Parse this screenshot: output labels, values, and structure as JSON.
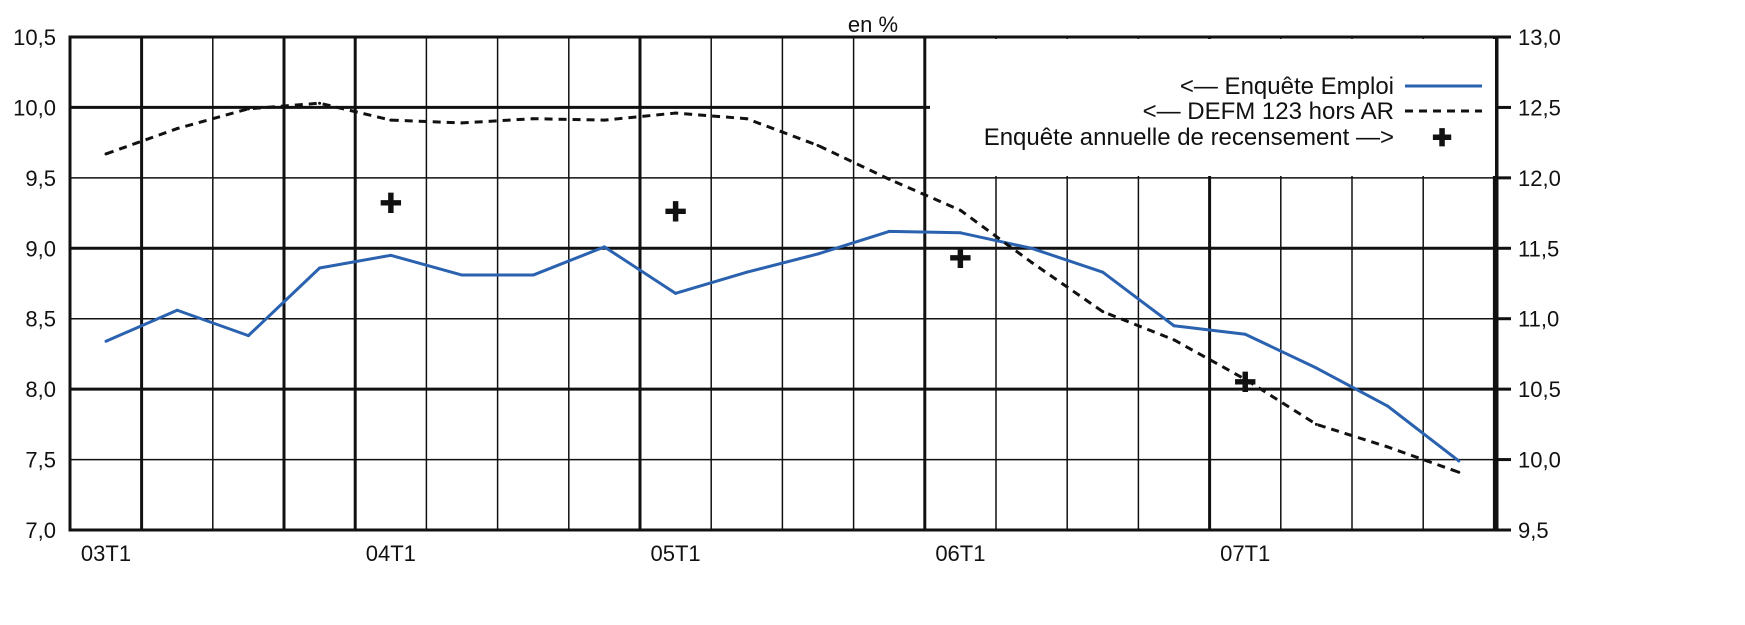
{
  "chart_data": {
    "type": "line",
    "title": "en %",
    "x": [
      "03T1",
      "03T2",
      "03T3",
      "03T4",
      "04T1",
      "04T2",
      "04T3",
      "04T4",
      "05T1",
      "05T2",
      "05T3",
      "05T4",
      "06T1",
      "06T2",
      "06T3",
      "06T4",
      "07T1",
      "07T2",
      "07T3",
      "07T4"
    ],
    "x_tick_labels": [
      "03T1",
      "04T1",
      "05T1",
      "06T1",
      "07T1"
    ],
    "y_left": {
      "ylim": [
        7.0,
        10.5
      ],
      "ticks": [
        "7,0",
        "7,5",
        "8,0",
        "8,5",
        "9,0",
        "9,5",
        "10,0",
        "10,5"
      ]
    },
    "y_right": {
      "ylim": [
        9.5,
        13.0
      ],
      "ticks": [
        "9,5",
        "10,0",
        "10,5",
        "11,0",
        "11,5",
        "12,0",
        "12,5",
        "13,0"
      ]
    },
    "series": [
      {
        "name": "<— Enquête Emploi",
        "axis": "left",
        "style": "solid",
        "color": "#2a62b0",
        "x": [
          "03T1",
          "03T2",
          "03T3",
          "03T4",
          "04T1",
          "04T2",
          "04T3",
          "04T4",
          "05T1",
          "05T2",
          "05T3",
          "05T4",
          "06T1",
          "06T2",
          "06T3",
          "06T4",
          "07T1",
          "07T2",
          "07T3",
          "07T4"
        ],
        "values": [
          8.34,
          8.56,
          8.38,
          8.86,
          8.95,
          8.81,
          8.81,
          9.01,
          8.68,
          8.83,
          8.96,
          9.12,
          9.11,
          9.0,
          8.83,
          8.45,
          8.39,
          8.15,
          7.88,
          7.49
        ]
      },
      {
        "name": "<— DEFM 123 hors AR",
        "axis": "left",
        "style": "dashed",
        "color": "#111111",
        "x": [
          "03T1",
          "03T2",
          "03T3",
          "03T4",
          "04T1",
          "04T2",
          "04T3",
          "04T4",
          "05T1",
          "05T2",
          "05T3",
          "05T4",
          "06T1",
          "06T2",
          "06T3",
          "06T4",
          "07T1",
          "07T2",
          "07T3",
          "07T4"
        ],
        "values": [
          9.67,
          9.85,
          9.99,
          10.03,
          9.91,
          9.89,
          9.92,
          9.91,
          9.96,
          9.92,
          9.73,
          9.49,
          9.27,
          8.9,
          8.55,
          8.35,
          8.07,
          7.75,
          7.59,
          7.41
        ]
      },
      {
        "name": "Enquête annuelle de recensement —>",
        "axis": "right",
        "style": "marker",
        "marker": "✚",
        "color": "#111111",
        "x": [
          "04T1",
          "05T1",
          "06T1",
          "07T1"
        ],
        "values": [
          11.82,
          11.76,
          11.43,
          10.55
        ]
      }
    ],
    "legend": {
      "placement": "top-right",
      "entries": [
        "<— Enquête Emploi",
        "<— DEFM 123 hors AR",
        "Enquête annuelle de recensement —>"
      ]
    },
    "grid": true
  }
}
